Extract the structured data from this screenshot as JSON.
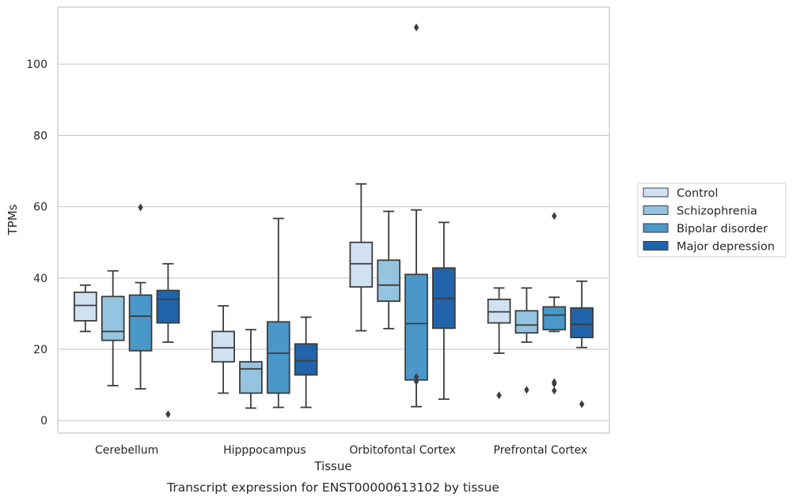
{
  "caption": "Transcript expression for ENST00000613102 by tissue",
  "chart_data": {
    "type": "box",
    "xlabel": "Tissue",
    "ylabel": "TPMs",
    "ylim": [
      -3.5,
      116
    ],
    "yticks": [
      0,
      20,
      40,
      60,
      80,
      100
    ],
    "grid": "horizontal",
    "legend_position": "right",
    "categories": [
      "Cerebellum",
      "Hipppocampus",
      "Orbitofontal Cortex",
      "Prefrontal Cortex"
    ],
    "series": [
      {
        "name": "Control",
        "color": "#d0e1f2",
        "boxes": [
          {
            "whislo": 25.0,
            "q1": 28.0,
            "med": 32.3,
            "q3": 36.0,
            "whishi": 38.0,
            "fliers": []
          },
          {
            "whislo": 7.7,
            "q1": 16.5,
            "med": 20.4,
            "q3": 25.0,
            "whishi": 32.2,
            "fliers": []
          },
          {
            "whislo": 25.2,
            "q1": 37.5,
            "med": 44.0,
            "q3": 50.0,
            "whishi": 66.4,
            "fliers": []
          },
          {
            "whislo": 18.9,
            "q1": 27.4,
            "med": 30.5,
            "q3": 34.0,
            "whishi": 37.2,
            "fliers": [
              7.1
            ]
          }
        ]
      },
      {
        "name": "Schizophrenia",
        "color": "#94c4df",
        "boxes": [
          {
            "whislo": 9.8,
            "q1": 22.5,
            "med": 25.0,
            "q3": 34.8,
            "whishi": 42.0,
            "fliers": []
          },
          {
            "whislo": 3.5,
            "q1": 7.7,
            "med": 14.5,
            "q3": 16.5,
            "whishi": 25.5,
            "fliers": []
          },
          {
            "whislo": 25.8,
            "q1": 33.5,
            "med": 38.0,
            "q3": 45.0,
            "whishi": 58.7,
            "fliers": []
          },
          {
            "whislo": 22.0,
            "q1": 24.6,
            "med": 26.8,
            "q3": 30.8,
            "whishi": 37.2,
            "fliers": [
              8.6
            ]
          }
        ]
      },
      {
        "name": "Bipolar disorder",
        "color": "#4a98c9",
        "boxes": [
          {
            "whislo": 8.9,
            "q1": 19.6,
            "med": 29.3,
            "q3": 35.2,
            "whishi": 38.7,
            "fliers": [
              59.8
            ]
          },
          {
            "whislo": 3.7,
            "q1": 7.7,
            "med": 18.9,
            "q3": 27.7,
            "whishi": 56.7,
            "fliers": []
          },
          {
            "whislo": 3.9,
            "q1": 11.4,
            "med": 27.2,
            "q3": 41.0,
            "whishi": 59.1,
            "fliers": [
              11.0,
              12.2,
              110.3
            ]
          },
          {
            "whislo": 25.0,
            "q1": 25.5,
            "med": 29.6,
            "q3": 31.9,
            "whishi": 34.6,
            "fliers": [
              8.4,
              10.3,
              10.8,
              57.4
            ]
          }
        ]
      },
      {
        "name": "Major depression",
        "color": "#2164ab",
        "boxes": [
          {
            "whislo": 22.0,
            "q1": 27.4,
            "med": 34.0,
            "q3": 36.5,
            "whishi": 44.0,
            "fliers": [
              1.8
            ]
          },
          {
            "whislo": 3.7,
            "q1": 12.8,
            "med": 16.8,
            "q3": 21.5,
            "whishi": 29.0,
            "fliers": []
          },
          {
            "whislo": 6.0,
            "q1": 25.9,
            "med": 34.3,
            "q3": 42.8,
            "whishi": 55.6,
            "fliers": []
          },
          {
            "whislo": 20.5,
            "q1": 23.3,
            "med": 27.0,
            "q3": 31.6,
            "whishi": 39.1,
            "fliers": [
              4.6
            ]
          }
        ]
      }
    ]
  }
}
